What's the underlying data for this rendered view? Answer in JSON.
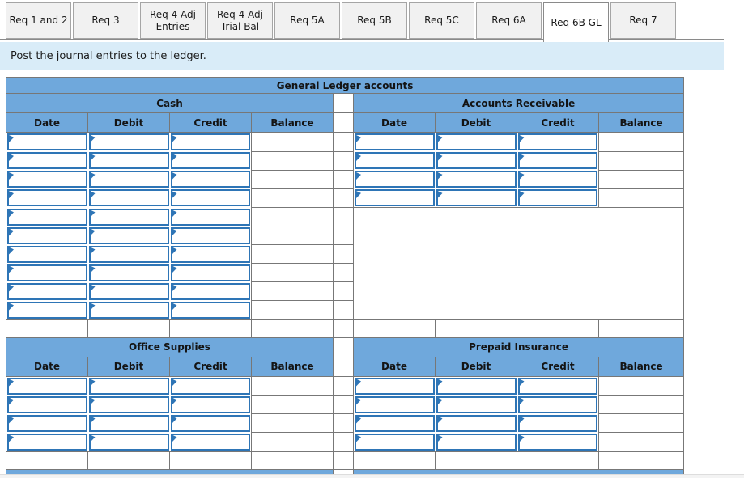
{
  "tabs": {
    "items": [
      {
        "label": "Req 1 and 2",
        "active": false
      },
      {
        "label": "Req 3",
        "active": false
      },
      {
        "label": "Req 4 Adj Entries",
        "active": false
      },
      {
        "label": "Req 4 Adj Trial Bal",
        "active": false
      },
      {
        "label": "Req 5A",
        "active": false
      },
      {
        "label": "Req 5B",
        "active": false
      },
      {
        "label": "Req 5C",
        "active": false
      },
      {
        "label": "Req 6A",
        "active": false
      },
      {
        "label": "Req 6B GL",
        "active": true
      },
      {
        "label": "Req 7",
        "active": false
      }
    ]
  },
  "instruction": {
    "text": "Post the journal entries to the ledger."
  },
  "ledger": {
    "title": "General Ledger accounts",
    "column_headers": [
      "Date",
      "Debit",
      "Credit",
      "Balance"
    ],
    "sections": [
      {
        "name": "Cash",
        "rows": 10,
        "position": "top-left"
      },
      {
        "name": "Accounts Receivable",
        "rows": 4,
        "position": "top-right"
      },
      {
        "name": "Office Supplies",
        "rows": 4,
        "position": "bottom-left"
      },
      {
        "name": "Prepaid Insurance",
        "rows": 4,
        "position": "bottom-right"
      }
    ],
    "cell_value": ""
  },
  "colors": {
    "header_blue": "#6fa8dc",
    "input_border_blue": "#2e75b6",
    "grid_gray": "#777777",
    "instruction_bg": "#d9ecf8"
  }
}
